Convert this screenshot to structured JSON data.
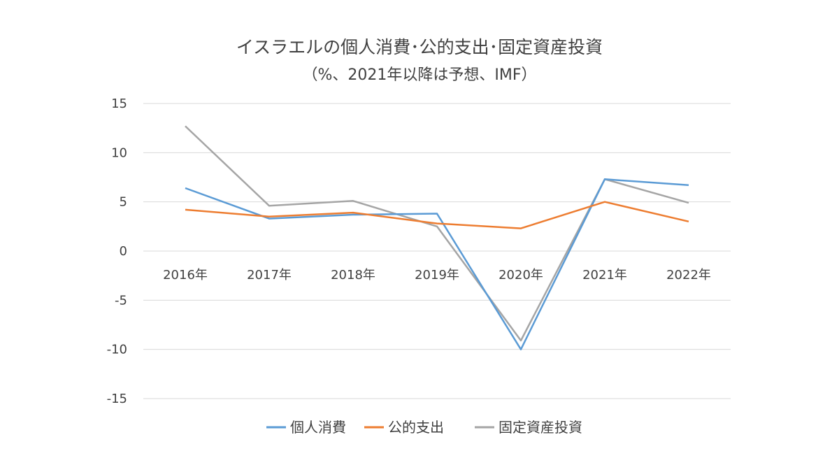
{
  "chart_data": {
    "type": "line",
    "title": "イスラエルの個人消費･公的支出･固定資産投資",
    "subtitle": "（%、2021年以降は予想、IMF）",
    "categories": [
      "2016年",
      "2017年",
      "2018年",
      "2019年",
      "2020年",
      "2021年",
      "2022年"
    ],
    "ylim": [
      -15,
      15
    ],
    "yticks": [
      "15",
      "10",
      "5",
      "0",
      "-5",
      "-10",
      "-15"
    ],
    "ytick_values": [
      15,
      10,
      5,
      0,
      -5,
      -10,
      -15
    ],
    "grid": true,
    "legend_position": "bottom",
    "series": [
      {
        "name": "個人消費",
        "color": "#5b9bd5",
        "values": [
          6.4,
          3.3,
          3.7,
          3.8,
          -10.0,
          7.3,
          6.7
        ]
      },
      {
        "name": "公的支出",
        "color": "#ed7d31",
        "values": [
          4.2,
          3.5,
          3.9,
          2.8,
          2.3,
          5.0,
          3.0
        ]
      },
      {
        "name": "固定資産投資",
        "color": "#a5a5a5",
        "values": [
          12.7,
          4.6,
          5.1,
          2.5,
          -9.1,
          7.3,
          4.9
        ]
      }
    ]
  }
}
